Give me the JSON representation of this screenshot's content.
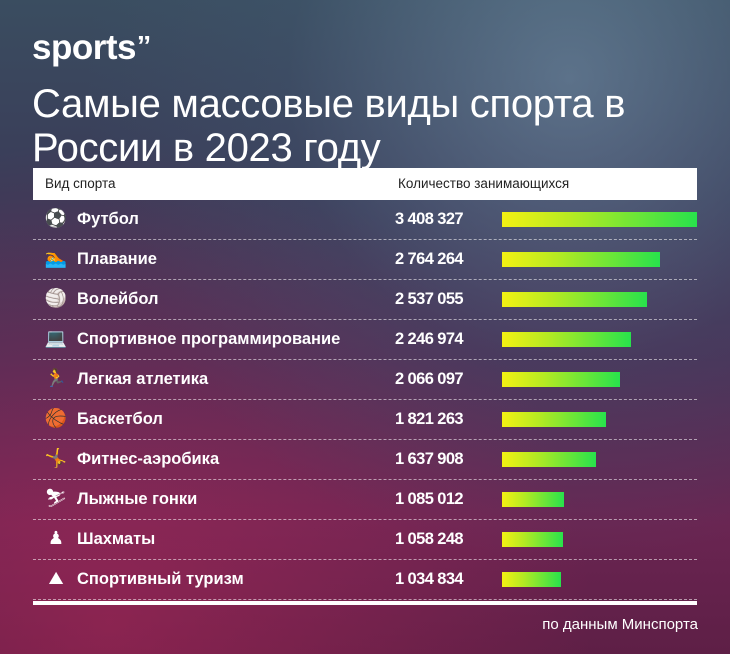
{
  "brand": {
    "name": "sports",
    "mark": "’’"
  },
  "title": "Самые массовые виды спорта в России в 2023 году",
  "table": {
    "col_sport": "Вид спорта",
    "col_count": "Количество занимающихся"
  },
  "source": "по данным Минспорта",
  "bar_colors": {
    "start": "#f3f113",
    "end": "#28e24c"
  },
  "chart_data": {
    "type": "bar",
    "orientation": "horizontal",
    "title": "Самые массовые виды спорта в России в 2023 году",
    "categories": [
      "Футбол",
      "Плавание",
      "Волейбол",
      "Спортивное программирование",
      "Легкая атлетика",
      "Баскетбол",
      "Фитнес-аэробика",
      "Лыжные гонки",
      "Шахматы",
      "Спортивный туризм"
    ],
    "values": [
      3408327,
      2764264,
      2537055,
      2246974,
      2066097,
      1821263,
      1637908,
      1085012,
      1058248,
      1034834
    ],
    "value_labels": [
      "3 408 327",
      "2 764 264",
      "2 537 055",
      "2 246 974",
      "2 066 097",
      "1 821 263",
      "1 637 908",
      "1 085 012",
      "1 058 248",
      "1 034 834"
    ],
    "icons": [
      "soccer-ball-icon",
      "swimmer-icon",
      "volleyball-icon",
      "laptop-icon",
      "runner-icon",
      "basketball-icon",
      "fitness-dancer-icon",
      "skier-icon",
      "chess-pawn-icon",
      "mountain-icon"
    ],
    "icon_glyphs": [
      "⚽",
      "🏊",
      "🏐",
      "💻",
      "🏃",
      "🏀",
      "🤸",
      "⛷",
      "♟",
      "⛰"
    ],
    "grid": false,
    "legend": "none"
  }
}
